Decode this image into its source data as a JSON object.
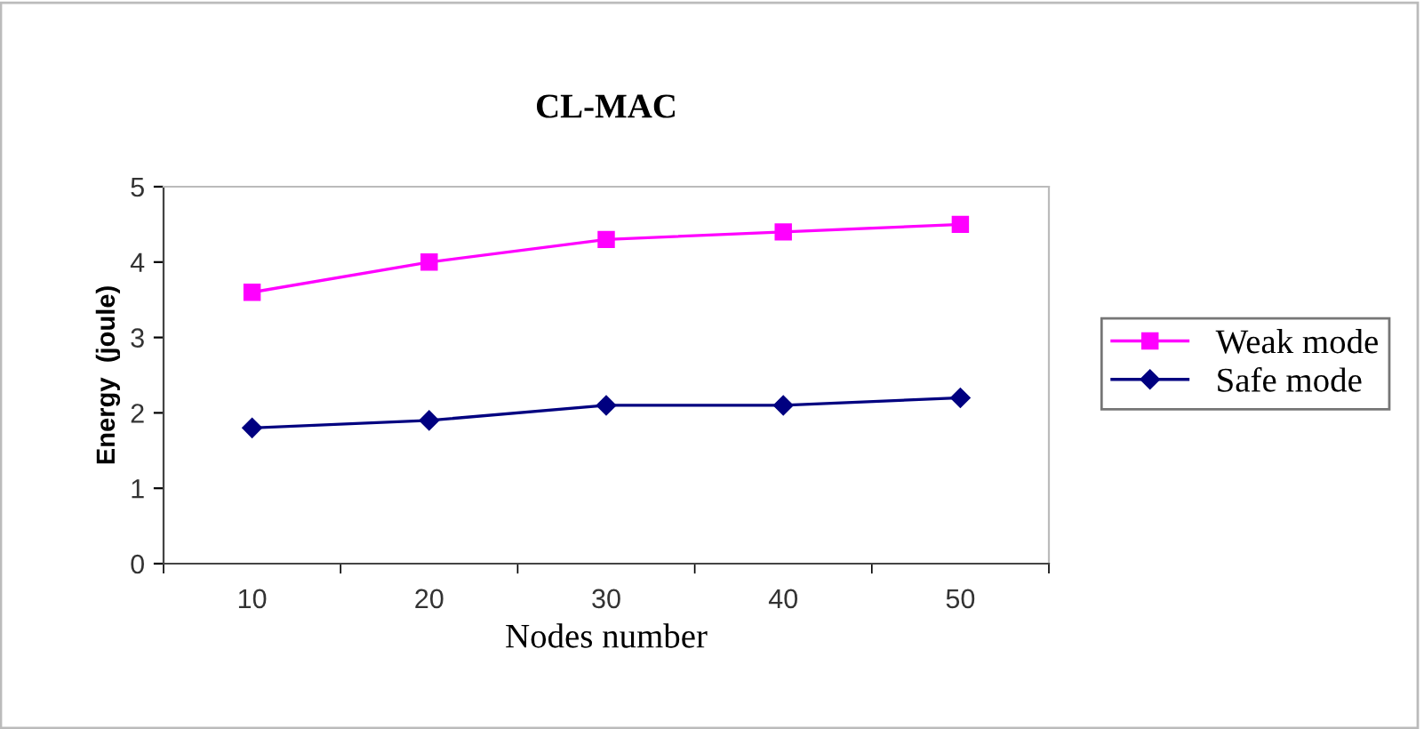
{
  "chart_data": {
    "type": "line",
    "title": "CL-MAC",
    "xlabel": "Nodes number",
    "ylabel": "Energy  (joule)",
    "categories": [
      "10",
      "20",
      "30",
      "40",
      "50"
    ],
    "series": [
      {
        "name": "Weak mode",
        "color": "#ff00ff",
        "values": [
          3.6,
          4.0,
          4.3,
          4.4,
          4.5
        ],
        "marker": "square"
      },
      {
        "name": "Safe mode",
        "color": "#000080",
        "values": [
          1.8,
          1.9,
          2.1,
          2.1,
          2.2
        ],
        "marker": "diamond"
      }
    ],
    "ylim": [
      0,
      5
    ],
    "yticks": [
      0,
      1,
      2,
      3,
      4,
      5
    ],
    "grid": false,
    "legend": "right",
    "line_style": "solid"
  }
}
